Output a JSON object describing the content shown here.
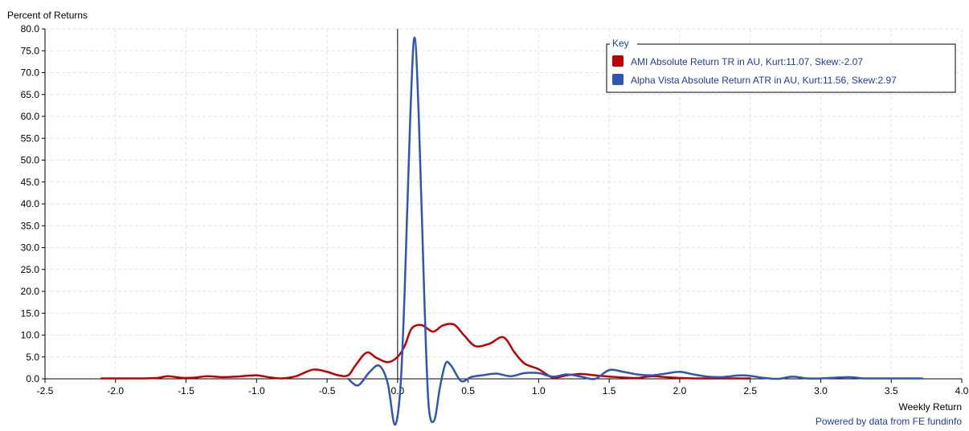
{
  "chart_data": {
    "type": "line",
    "ylabel": "Percent of Returns",
    "xlabel": "Weekly Return",
    "xlim": [
      -2.5,
      4.0
    ],
    "ylim": [
      0,
      80
    ],
    "x_ticks": [
      "-2.5",
      "-2.0",
      "-1.5",
      "-1.0",
      "-0.5",
      "0.0",
      "0.5",
      "1.0",
      "1.5",
      "2.0",
      "2.5",
      "3.0",
      "3.5",
      "4.0"
    ],
    "x_tick_values": [
      -2.5,
      -2.0,
      -1.5,
      -1.0,
      -0.5,
      0.0,
      0.5,
      1.0,
      1.5,
      2.0,
      2.5,
      3.0,
      3.5,
      4.0
    ],
    "y_ticks": [
      "0.0",
      "5.0",
      "10.0",
      "15.0",
      "20.0",
      "25.0",
      "30.0",
      "35.0",
      "40.0",
      "45.0",
      "50.0",
      "55.0",
      "60.0",
      "65.0",
      "70.0",
      "75.0",
      "80.0"
    ],
    "y_tick_values": [
      0,
      5,
      10,
      15,
      20,
      25,
      30,
      35,
      40,
      45,
      50,
      55,
      60,
      65,
      70,
      75,
      80
    ],
    "grid": true,
    "legend": {
      "title": "Key",
      "position": "top-right"
    },
    "series": [
      {
        "name": "AMI Absolute Return TR in AU, Kurt:11.07, Skew:-2.07",
        "color": "#c00000",
        "x": [
          -2.1,
          -1.9,
          -1.8,
          -1.7,
          -1.63,
          -1.55,
          -1.5,
          -1.43,
          -1.35,
          -1.25,
          -1.15,
          -1.0,
          -0.92,
          -0.82,
          -0.72,
          -0.6,
          -0.5,
          -0.42,
          -0.35,
          -0.3,
          -0.22,
          -0.15,
          -0.07,
          0.0,
          0.05,
          0.1,
          0.17,
          0.25,
          0.32,
          0.4,
          0.47,
          0.55,
          0.65,
          0.75,
          0.83,
          0.9,
          1.0,
          1.1,
          1.2,
          1.3,
          1.4,
          1.5,
          1.6,
          1.7,
          1.8,
          1.9,
          2.0,
          2.1,
          2.2,
          2.3,
          2.4,
          2.5
        ],
        "values": [
          0.1,
          0.1,
          0.1,
          0.2,
          0.6,
          0.3,
          0.2,
          0.3,
          0.6,
          0.4,
          0.5,
          0.8,
          0.4,
          0.1,
          0.6,
          2.1,
          1.6,
          0.8,
          0.8,
          3.0,
          6.0,
          4.8,
          3.8,
          5.0,
          7.5,
          11.5,
          12.3,
          10.8,
          12.2,
          12.4,
          10.0,
          7.5,
          8.0,
          9.5,
          6.0,
          3.5,
          2.2,
          0.3,
          0.8,
          1.1,
          0.8,
          0.5,
          0.3,
          0.2,
          0.6,
          0.4,
          0.2,
          0.1,
          0.1,
          0.1,
          0.1,
          0.1
        ]
      },
      {
        "name": "Alpha Vista Absolute Return ATR in AU, Kurt:11.56, Skew:2.97",
        "color": "#2f55b5",
        "x": [
          -0.35,
          -0.28,
          -0.2,
          -0.13,
          -0.07,
          -0.02,
          0.02,
          0.05,
          0.09,
          0.12,
          0.15,
          0.19,
          0.22,
          0.26,
          0.3,
          0.34,
          0.38,
          0.45,
          0.52,
          0.6,
          0.7,
          0.8,
          0.9,
          1.0,
          1.1,
          1.2,
          1.3,
          1.4,
          1.5,
          1.6,
          1.7,
          1.8,
          1.9,
          2.0,
          2.1,
          2.2,
          2.3,
          2.45,
          2.6,
          2.7,
          2.8,
          2.9,
          3.0,
          3.2,
          3.3,
          3.45,
          3.6,
          3.72
        ],
        "values": [
          0.0,
          -1.5,
          1.5,
          3.0,
          -1.0,
          -10.5,
          -2.0,
          20.0,
          60.0,
          78.0,
          60.0,
          18.0,
          -6.0,
          -9.5,
          -2.0,
          3.5,
          3.0,
          -0.5,
          0.4,
          0.8,
          1.2,
          0.6,
          1.3,
          1.3,
          0.5,
          1.0,
          0.5,
          0.0,
          2.0,
          1.6,
          1.0,
          0.8,
          1.2,
          1.6,
          1.0,
          0.5,
          0.4,
          0.8,
          0.2,
          0.0,
          0.5,
          0.1,
          0.1,
          0.4,
          0.1,
          0.1,
          0.1,
          0.1
        ]
      }
    ],
    "credit": "Powered by data from FE fundinfo"
  }
}
